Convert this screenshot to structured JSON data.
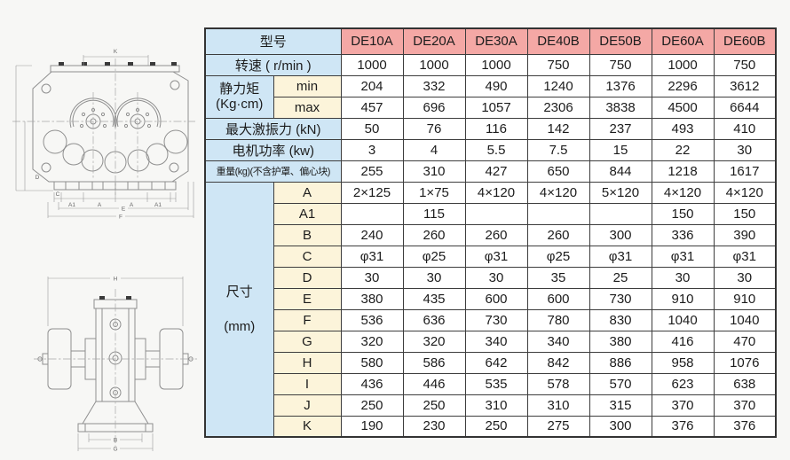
{
  "colors": {
    "header_pink": "#f4a8a5",
    "label_blue": "#cfe6f5",
    "sub_cream": "#fcf4da",
    "grid_border": "#3d3d3d"
  },
  "drawings": {
    "top_view": {
      "dims": {
        "k": "K",
        "d": "D",
        "c": "C",
        "a1_left": "A1",
        "a_left": "A",
        "a_right": "A",
        "a1_right": "A1",
        "e": "E",
        "f": "F"
      }
    },
    "front_view": {
      "dims": {
        "h": "H",
        "b": "B",
        "g": "G"
      }
    }
  },
  "table": {
    "corner_label": "型号",
    "models": [
      "DE10A",
      "DE20A",
      "DE30A",
      "DE40B",
      "DE50B",
      "DE60A",
      "DE60B"
    ],
    "rows": [
      {
        "kind": "full",
        "label": "转速 ( r/min )",
        "values": [
          "1000",
          "1000",
          "1000",
          "750",
          "750",
          "1000",
          "750"
        ]
      },
      {
        "kind": "group",
        "group_line1": "静力矩",
        "group_line2": "(Kg·cm)",
        "span": 2,
        "sub": "min",
        "values": [
          "204",
          "332",
          "490",
          "1240",
          "1376",
          "2296",
          "3612"
        ]
      },
      {
        "kind": "sub",
        "sub": "max",
        "values": [
          "457",
          "696",
          "1057",
          "2306",
          "3838",
          "4500",
          "6644"
        ]
      },
      {
        "kind": "full",
        "label": "最大激振力 (kN)",
        "values": [
          "50",
          "76",
          "116",
          "142",
          "237",
          "493",
          "410"
        ]
      },
      {
        "kind": "full",
        "label": "电机功率 (kw)",
        "values": [
          "3",
          "4",
          "5.5",
          "7.5",
          "15",
          "22",
          "30"
        ]
      },
      {
        "kind": "full",
        "label": "重量(kg)(不含护罩、偏心块)",
        "small": true,
        "values": [
          "255",
          "310",
          "427",
          "650",
          "844",
          "1218",
          "1617"
        ]
      },
      {
        "kind": "group",
        "group_line1": "尺寸",
        "group_line2": "(mm)",
        "group_gap": true,
        "span": 12,
        "sub": "A",
        "values": [
          "2×125",
          "1×75",
          "4×120",
          "4×120",
          "5×120",
          "4×120",
          "4×120"
        ]
      },
      {
        "kind": "sub",
        "sub": "A1",
        "values": [
          "",
          "115",
          "",
          "",
          "",
          "150",
          "150"
        ]
      },
      {
        "kind": "sub",
        "sub": "B",
        "values": [
          "240",
          "260",
          "260",
          "260",
          "300",
          "336",
          "390"
        ]
      },
      {
        "kind": "sub",
        "sub": "C",
        "values": [
          "φ31",
          "φ25",
          "φ31",
          "φ25",
          "φ31",
          "φ31",
          "φ31"
        ]
      },
      {
        "kind": "sub",
        "sub": "D",
        "values": [
          "30",
          "30",
          "30",
          "35",
          "25",
          "30",
          "30"
        ]
      },
      {
        "kind": "sub",
        "sub": "E",
        "values": [
          "380",
          "435",
          "600",
          "600",
          "730",
          "910",
          "910"
        ]
      },
      {
        "kind": "sub",
        "sub": "F",
        "values": [
          "536",
          "636",
          "730",
          "780",
          "830",
          "1040",
          "1040"
        ]
      },
      {
        "kind": "sub",
        "sub": "G",
        "values": [
          "320",
          "320",
          "340",
          "340",
          "380",
          "416",
          "470"
        ]
      },
      {
        "kind": "sub",
        "sub": "H",
        "values": [
          "580",
          "586",
          "642",
          "842",
          "886",
          "958",
          "1076"
        ]
      },
      {
        "kind": "sub",
        "sub": "I",
        "values": [
          "436",
          "446",
          "535",
          "578",
          "570",
          "623",
          "638"
        ]
      },
      {
        "kind": "sub",
        "sub": "J",
        "values": [
          "250",
          "250",
          "310",
          "310",
          "315",
          "370",
          "370"
        ]
      },
      {
        "kind": "sub",
        "sub": "K",
        "values": [
          "190",
          "230",
          "250",
          "275",
          "300",
          "376",
          "376"
        ]
      }
    ]
  }
}
